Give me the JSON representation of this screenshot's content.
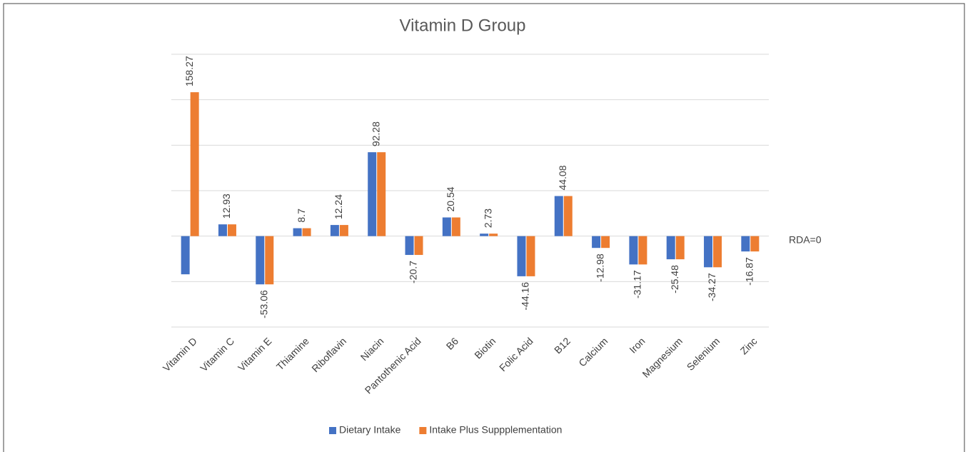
{
  "chart_data": {
    "type": "bar",
    "title": "Vitamin D Group",
    "categories": [
      "Vitamin D",
      "Vitamin C",
      "Vitamin E",
      "Thiamine",
      "Riboflavin",
      "Niacin",
      "Pantothenic Acid",
      "B6",
      "Biotin",
      "Folic Acid",
      "B12",
      "Calcium",
      "Iron",
      "Magnesium",
      "Selenium",
      "Zinc"
    ],
    "series": [
      {
        "name": "Dietary Intake",
        "color": "#4472c4",
        "values": [
          -42,
          12.93,
          -53.06,
          8.7,
          12.24,
          92.28,
          -20.7,
          20.54,
          2.73,
          -44.16,
          44.08,
          -12.98,
          -31.17,
          -25.48,
          -34.27,
          -16.87
        ]
      },
      {
        "name": "Intake Plus Suppplementation",
        "color": "#ed7d31",
        "values": [
          158.27,
          12.93,
          -53.06,
          8.7,
          12.24,
          92.28,
          -20.7,
          20.54,
          2.73,
          -44.16,
          44.08,
          -12.98,
          -31.17,
          -25.48,
          -34.27,
          -16.87
        ]
      }
    ],
    "ylim": [
      -100,
      200
    ],
    "yticks": [
      -100,
      -50,
      0,
      50,
      100,
      150,
      200
    ],
    "grid": true,
    "annotation": "RDA=0",
    "legend": "bottom"
  }
}
